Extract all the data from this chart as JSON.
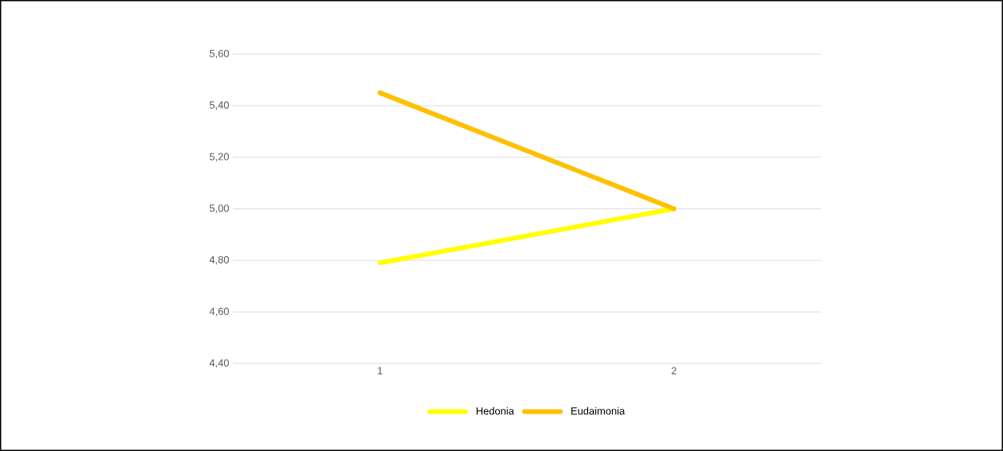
{
  "chart_data": {
    "type": "line",
    "categories": [
      "1",
      "2"
    ],
    "series": [
      {
        "name": "Hedonia",
        "color": "#ffff00",
        "values": [
          4.79,
          5.0
        ]
      },
      {
        "name": "Eudaimonia",
        "color": "#ffc000",
        "values": [
          5.45,
          5.0
        ]
      }
    ],
    "ylim": [
      4.4,
      5.6
    ],
    "yticks": [
      {
        "value": 4.4,
        "label": "4,40"
      },
      {
        "value": 4.6,
        "label": "4,60"
      },
      {
        "value": 4.8,
        "label": "4,80"
      },
      {
        "value": 5.0,
        "label": "5,00"
      },
      {
        "value": 5.2,
        "label": "5,20"
      },
      {
        "value": 5.4,
        "label": "5,40"
      },
      {
        "value": 5.6,
        "label": "5,60"
      }
    ],
    "grid": "y",
    "legend": "bottom",
    "line_style": "solid"
  }
}
